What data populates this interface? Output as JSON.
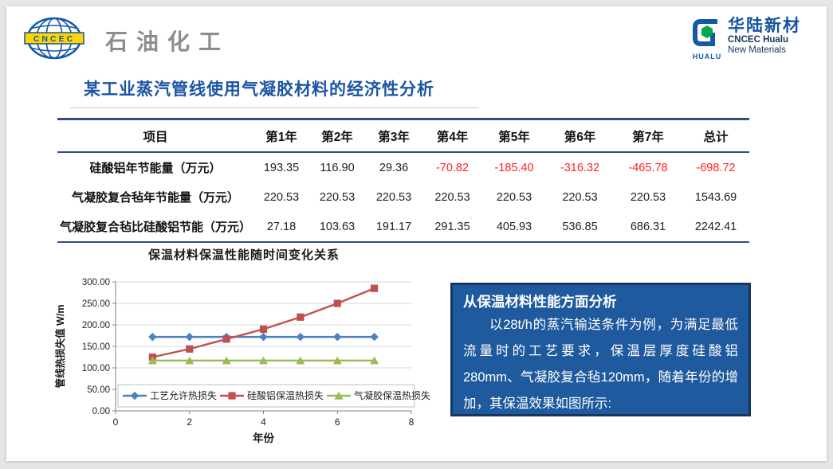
{
  "header": {
    "left_logo": {
      "abbr": "CNCEC",
      "label": "石油化工"
    },
    "right_logo": {
      "wordmark": "HUALU",
      "name_cn": "华陆新材",
      "name_en_line1": "CNCEC Hualu",
      "name_en_line2": "New Materials"
    }
  },
  "title": "某工业蒸汽管线使用气凝胶材料的经济性分析",
  "table": {
    "headers": [
      "项目",
      "第1年",
      "第2年",
      "第3年",
      "第4年",
      "第5年",
      "第6年",
      "第7年",
      "总计"
    ],
    "rows": [
      {
        "label": "硅酸铝年节能量（万元）",
        "values": [
          "193.35",
          "116.90",
          "29.36",
          "-70.82",
          "-185.40",
          "-316.32",
          "-465.78",
          "-698.72"
        ]
      },
      {
        "label": "气凝胶复合毡年节能量（万元）",
        "values": [
          "220.53",
          "220.53",
          "220.53",
          "220.53",
          "220.53",
          "220.53",
          "220.53",
          "1543.69"
        ]
      },
      {
        "label": "气凝胶复合毡比硅酸铝节能（万元）",
        "values": [
          "27.18",
          "103.63",
          "191.17",
          "291.35",
          "405.93",
          "536.85",
          "686.31",
          "2242.41"
        ]
      }
    ],
    "negative_color": "#FF2222",
    "border_color": "#2E4E7E"
  },
  "chart_data": {
    "type": "line",
    "title": "保温材料保温性能随时间变化关系",
    "xlabel": "年份",
    "ylabel": "管线热损失值 W/m",
    "x": [
      1,
      2,
      3,
      4,
      5,
      6,
      7
    ],
    "xlim": [
      0,
      8
    ],
    "ylim": [
      0,
      300
    ],
    "x_ticks": [
      "0",
      "2",
      "4",
      "6",
      "8"
    ],
    "y_ticks": [
      "300.00",
      "250.00",
      "200.00",
      "150.00",
      "100.00",
      "50.00",
      "0.00"
    ],
    "grid": true,
    "legend_position": "bottom-inside",
    "series": [
      {
        "name": "工艺允许热损失",
        "color": "#4F81BD",
        "marker": "diamond",
        "values": [
          172,
          172,
          172,
          172,
          172,
          172,
          172
        ]
      },
      {
        "name": "硅酸铝保温热损失",
        "color": "#C0504D",
        "marker": "square",
        "values": [
          125,
          144,
          167,
          190,
          218,
          250,
          285
        ]
      },
      {
        "name": "气凝胶保温热损失",
        "color": "#9BBB59",
        "marker": "triangle",
        "values": [
          117,
          117,
          117,
          117,
          117,
          117,
          117
        ]
      }
    ]
  },
  "analysis_box": {
    "heading": "从保温材料性能方面分析",
    "body": "以28t/h的蒸汽输送条件为例，为满足最低流量时的工艺要求，保温层厚度硅酸铝280mm、气凝胶复合毡120mm，随着年份的增加，其保温效果如图所示:",
    "bg_color": "#1F5A9E",
    "border_color": "#16365C"
  },
  "colors": {
    "title_blue": "#1B55A3",
    "logo_gray": "#8D8D8D",
    "hualu_blue": "#1553A1",
    "grid_gray": "#D9D9D9",
    "axis_gray": "#808080"
  }
}
